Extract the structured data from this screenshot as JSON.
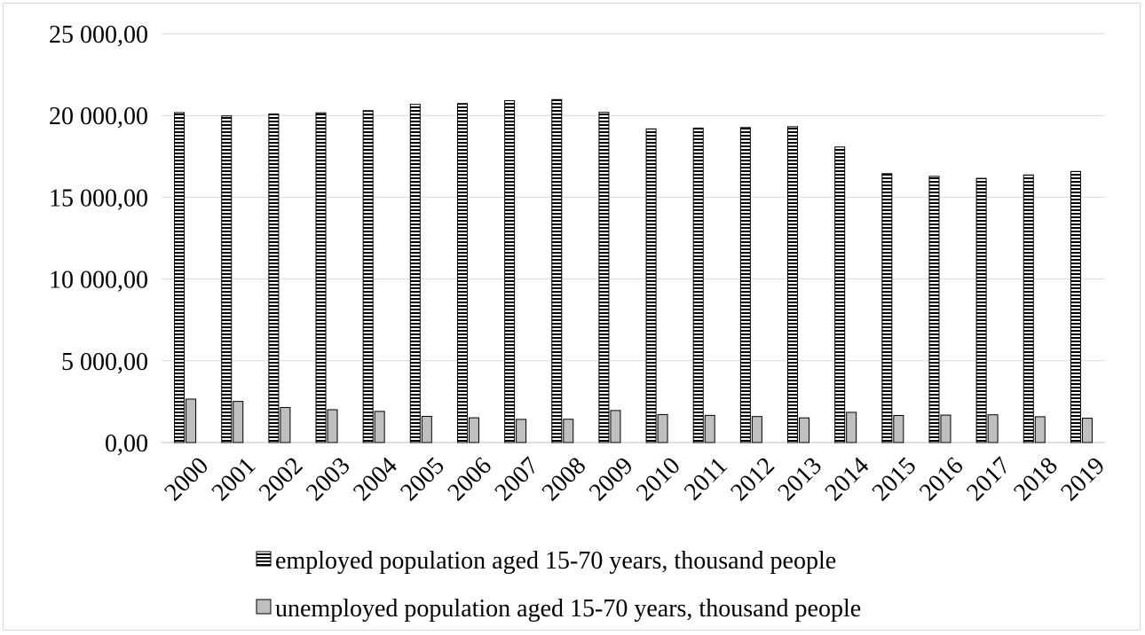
{
  "chart_data": {
    "type": "bar",
    "categories": [
      "2000",
      "2001",
      "2002",
      "2003",
      "2004",
      "2005",
      "2006",
      "2007",
      "2008",
      "2009",
      "2010",
      "2011",
      "2012",
      "2013",
      "2014",
      "2015",
      "2016",
      "2017",
      "2018",
      "2019"
    ],
    "series": [
      {
        "name": "employed population aged 15-70 years, thousand people",
        "values": [
          20175,
          19971,
          20092,
          20163,
          20296,
          20680,
          20730,
          20905,
          20972,
          20192,
          19180,
          19231,
          19261,
          19314,
          18073,
          16443,
          16277,
          16156,
          16361,
          16578
        ],
        "pattern": "horizontal-stripes"
      },
      {
        "name": "unemployed population aged 15-70 years, thousand people",
        "values": [
          2656,
          2516,
          2141,
          2008,
          1907,
          1601,
          1515,
          1417,
          1425,
          1959,
          1713,
          1662,
          1590,
          1510,
          1848,
          1655,
          1678,
          1698,
          1579,
          1488
        ],
        "pattern": "solid-gray"
      }
    ],
    "yticks": [
      "0,00",
      "5 000,00",
      "10 000,00",
      "15 000,00",
      "20 000,00",
      "25 000,00"
    ],
    "ylim": [
      0,
      25000
    ],
    "grid": true,
    "legend": "bottom",
    "colors": {
      "unemployed_fill": "#bfbfbf",
      "stroke": "#000000",
      "grid": "#d9d9d9"
    }
  }
}
